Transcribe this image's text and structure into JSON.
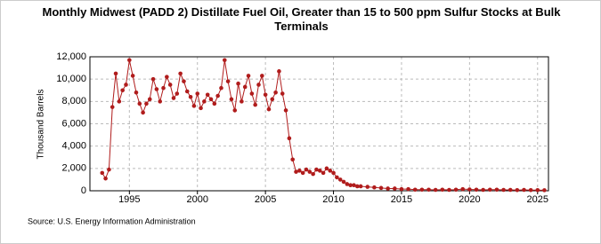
{
  "chart_data": {
    "type": "line",
    "title": "Monthly Midwest (PADD 2) Distillate Fuel Oil, Greater than 15 to 500 ppm Sulfur Stocks at Bulk Terminals",
    "y_label": "Thousand Barrels",
    "source": "Source: U.S. Energy Information Administration",
    "x": [
      1993.0,
      1993.25,
      1993.5,
      1993.75,
      1994.0,
      1994.25,
      1994.5,
      1994.75,
      1995.0,
      1995.25,
      1995.5,
      1995.75,
      1996.0,
      1996.25,
      1996.5,
      1996.75,
      1997.0,
      1997.25,
      1997.5,
      1997.75,
      1998.0,
      1998.25,
      1998.5,
      1998.75,
      1999.0,
      1999.25,
      1999.5,
      1999.75,
      2000.0,
      2000.25,
      2000.5,
      2000.75,
      2001.0,
      2001.25,
      2001.5,
      2001.75,
      2002.0,
      2002.25,
      2002.5,
      2002.75,
      2003.0,
      2003.25,
      2003.5,
      2003.75,
      2004.0,
      2004.25,
      2004.5,
      2004.75,
      2005.0,
      2005.25,
      2005.5,
      2005.75,
      2006.0,
      2006.25,
      2006.5,
      2006.75,
      2007.0,
      2007.25,
      2007.5,
      2007.75,
      2008.0,
      2008.25,
      2008.5,
      2008.75,
      2009.0,
      2009.25,
      2009.5,
      2009.75,
      2010.0,
      2010.25,
      2010.5,
      2010.75,
      2011.0,
      2011.25,
      2011.5,
      2011.75,
      2012.0,
      2012.5,
      2013.0,
      2013.5,
      2014.0,
      2014.5,
      2015.0,
      2015.5,
      2016.0,
      2016.5,
      2017.0,
      2017.5,
      2018.0,
      2018.5,
      2019.0,
      2019.5,
      2020.0,
      2020.5,
      2021.0,
      2021.5,
      2022.0,
      2022.5,
      2023.0,
      2023.5,
      2024.0,
      2024.5,
      2025.0,
      2025.5
    ],
    "series": [
      {
        "color": "#b01c1c",
        "values": [
          1600,
          1100,
          1900,
          7500,
          10500,
          8000,
          9000,
          9500,
          11700,
          10300,
          8800,
          7800,
          7000,
          7800,
          8200,
          10000,
          9100,
          8000,
          9200,
          10200,
          9500,
          8300,
          8700,
          10500,
          9800,
          8900,
          8400,
          7600,
          8700,
          7400,
          8000,
          8600,
          8200,
          7800,
          8500,
          9200,
          11700,
          9800,
          8200,
          7200,
          9600,
          8000,
          9300,
          10300,
          8700,
          7700,
          9500,
          10300,
          8600,
          7300,
          8200,
          8800,
          10700,
          8700,
          7200,
          4700,
          2800,
          1700,
          1800,
          1600,
          1900,
          1700,
          1500,
          1900,
          1800,
          1600,
          2000,
          1800,
          1600,
          1200,
          1000,
          800,
          600,
          500,
          500,
          400,
          400,
          350,
          300,
          250,
          200,
          200,
          150,
          150,
          100,
          100,
          100,
          80,
          100,
          80,
          100,
          150,
          120,
          100,
          80,
          100,
          100,
          80,
          80,
          60,
          80,
          60,
          60,
          50
        ]
      }
    ],
    "xlim": [
      1992.1,
      2025.8
    ],
    "xticks": [
      1995,
      2000,
      2005,
      2010,
      2015,
      2020,
      2025
    ],
    "ylim": [
      0,
      12000
    ],
    "yticks": [
      0,
      {
        "value": 2000,
        "label": "2,000"
      },
      {
        "value": 4000,
        "label": "4,000"
      },
      {
        "value": 6000,
        "label": "6,000"
      },
      {
        "value": 8000,
        "label": "8,000"
      },
      {
        "value": 10000,
        "label": "10,000"
      },
      {
        "value": 12000,
        "label": "12,000"
      }
    ],
    "grid": true
  }
}
